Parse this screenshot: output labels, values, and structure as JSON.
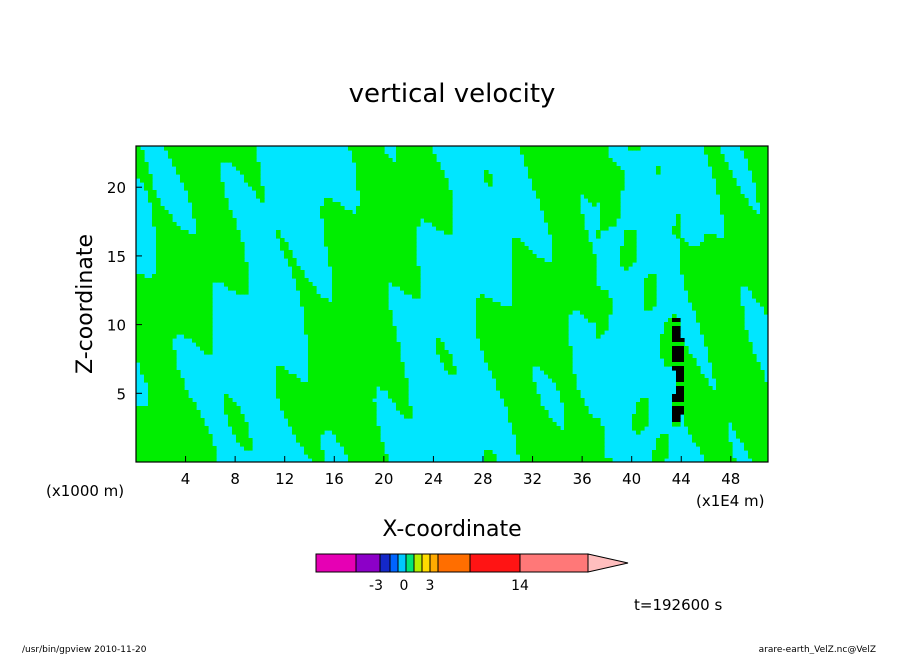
{
  "chart_data": {
    "type": "heatmap",
    "title": "vertical velocity",
    "xlabel": "X-coordinate",
    "ylabel": "Z-coordinate",
    "x_unit_left": "(x1000 m)",
    "x_unit_right": "(x1E4 m)",
    "xlim": [
      0,
      51
    ],
    "ylim": [
      0,
      23
    ],
    "x_ticks": [
      4,
      8,
      12,
      16,
      20,
      24,
      28,
      32,
      36,
      40,
      44,
      48
    ],
    "y_ticks": [
      5,
      10,
      15,
      20
    ],
    "field_colors": {
      "negative": "#00e6ff",
      "positive": "#00ee00",
      "strong": "#000000"
    },
    "colorbar": {
      "colors": [
        "#e600b4",
        "#8c00c8",
        "#1428c8",
        "#0064ff",
        "#00c8ff",
        "#00e676",
        "#b4f000",
        "#ffdc00",
        "#ffaa00",
        "#ff6e00",
        "#ff1414",
        "#ff7878",
        "#ffbebe"
      ],
      "widths": [
        40,
        24,
        10,
        8,
        8,
        8,
        8,
        8,
        8,
        32,
        50,
        68,
        40
      ],
      "labels": [
        "-3",
        "0",
        "3",
        "14"
      ]
    },
    "time_label": "t=192600 s",
    "footer_left": "/usr/bin/gpview   2010-11-20",
    "footer_right": "arare-earth_VelZ.nc@VelZ"
  }
}
